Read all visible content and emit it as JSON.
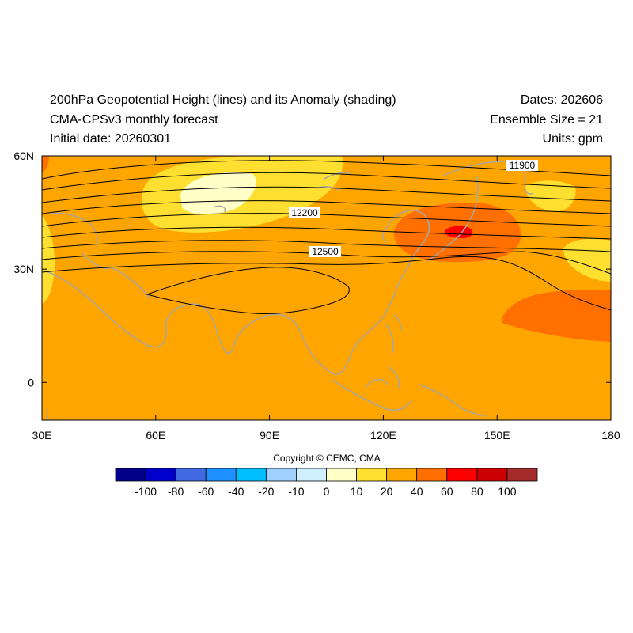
{
  "header": {
    "title": "200hPa Geopotential Height (lines) and its Anomaly (shading)",
    "subtitle": "CMA-CPSv3 monthly forecast",
    "initial_date": "Initial date: 20260301",
    "dates": "Dates: 202606",
    "ensemble": "Ensemble Size = 21",
    "units": "Units: gpm"
  },
  "map": {
    "lon_range": [
      30,
      180
    ],
    "lat_range": [
      -10,
      60
    ],
    "lon_ticks": [
      {
        "value": 30,
        "label": "30E"
      },
      {
        "value": 60,
        "label": "60E"
      },
      {
        "value": 90,
        "label": "90E"
      },
      {
        "value": 120,
        "label": "120E"
      },
      {
        "value": 150,
        "label": "150E"
      },
      {
        "value": 180,
        "label": "180"
      }
    ],
    "lat_ticks": [
      {
        "value": 60,
        "label": "60N"
      },
      {
        "value": 30,
        "label": "30N"
      },
      {
        "value": 0,
        "label": "0"
      }
    ],
    "background_color": "#ffa500",
    "contour_labels": [
      "11900",
      "12200",
      "12500"
    ]
  },
  "copyright": "Copyright © CEMC, CMA",
  "colorbar": {
    "colors": [
      "#00008b",
      "#0000cd",
      "#4169e1",
      "#1e90ff",
      "#00bfff",
      "#a0d0ff",
      "#d0f0ff",
      "#ffffc8",
      "#ffe030",
      "#ffa500",
      "#ff7000",
      "#ff0000",
      "#cc0000",
      "#a52a2a"
    ],
    "labels": [
      "-100",
      "-80",
      "-60",
      "-40",
      "-20",
      "-10",
      "0",
      "10",
      "20",
      "40",
      "60",
      "80",
      "100"
    ]
  }
}
